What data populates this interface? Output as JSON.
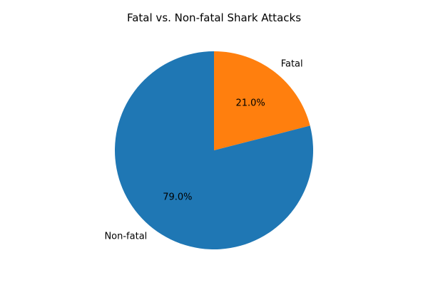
{
  "chart_data": {
    "type": "pie",
    "title": "Fatal vs. Non-fatal Shark Attacks",
    "slices": [
      {
        "label": "Fatal",
        "value": 21.0,
        "percent_label": "21.0%",
        "color": "#ff7f0e"
      },
      {
        "label": "Non-fatal",
        "value": 79.0,
        "percent_label": "79.0%",
        "color": "#1f77b4"
      }
    ],
    "start_angle_deg": 90,
    "direction": "clockwise",
    "legend": "none"
  }
}
